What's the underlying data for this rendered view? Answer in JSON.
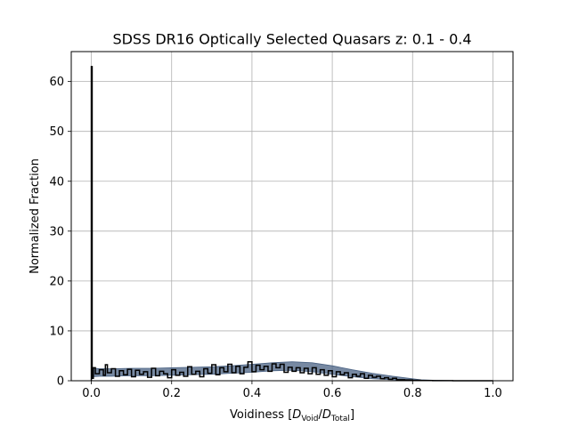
{
  "chart_data": {
    "type": "line",
    "title": "SDSS DR16 Optically Selected Quasars z: 0.1 - 0.4",
    "xlabel": {
      "prefix": "Voidiness [",
      "numer": "D",
      "numer_sub": "Void",
      "slash": "/",
      "denom": "D",
      "denom_sub": "Total",
      "suffix": "]"
    },
    "ylabel": "Normalized Fraction",
    "xlim": [
      -0.05,
      1.05
    ],
    "ylim": [
      0,
      66
    ],
    "xticks": [
      0.0,
      0.2,
      0.4,
      0.6,
      0.8,
      1.0
    ],
    "xtick_labels": [
      "0.0",
      "0.2",
      "0.4",
      "0.6",
      "0.8",
      "1.0"
    ],
    "yticks": [
      0,
      10,
      20,
      30,
      40,
      50,
      60
    ],
    "ytick_labels": [
      "0",
      "10",
      "20",
      "30",
      "40",
      "50",
      "60"
    ],
    "grid": true,
    "colors": {
      "band": "#4a6283",
      "line": "#000000",
      "grid": "#b0b0b0"
    },
    "series": [
      {
        "role": "uncertainty-band",
        "x": [
          0.0,
          0.02,
          0.05,
          0.1,
          0.15,
          0.2,
          0.25,
          0.3,
          0.35,
          0.4,
          0.45,
          0.5,
          0.55,
          0.6,
          0.65,
          0.7,
          0.75,
          0.8,
          0.82,
          0.85,
          0.9,
          1.0
        ],
        "upper": [
          2.6,
          2.4,
          2.4,
          2.5,
          2.5,
          2.6,
          2.7,
          2.8,
          3.0,
          3.3,
          3.6,
          3.8,
          3.6,
          3.0,
          2.2,
          1.5,
          0.9,
          0.4,
          0.2,
          0.1,
          0.0,
          0.0
        ],
        "lower": [
          0.8,
          0.9,
          0.9,
          1.0,
          1.0,
          1.1,
          1.2,
          1.3,
          1.5,
          1.7,
          2.0,
          2.1,
          1.8,
          1.3,
          0.8,
          0.4,
          0.2,
          0.05,
          0.0,
          0.0,
          0.0,
          0.0
        ]
      },
      {
        "role": "histogram",
        "x": [
          0.0,
          0.002,
          0.005,
          0.01,
          0.02,
          0.03,
          0.035,
          0.04,
          0.05,
          0.06,
          0.07,
          0.08,
          0.09,
          0.1,
          0.11,
          0.12,
          0.13,
          0.14,
          0.15,
          0.16,
          0.17,
          0.18,
          0.19,
          0.2,
          0.21,
          0.22,
          0.23,
          0.24,
          0.25,
          0.26,
          0.27,
          0.28,
          0.29,
          0.3,
          0.31,
          0.32,
          0.33,
          0.34,
          0.35,
          0.36,
          0.37,
          0.38,
          0.39,
          0.4,
          0.41,
          0.42,
          0.43,
          0.44,
          0.45,
          0.46,
          0.47,
          0.48,
          0.49,
          0.5,
          0.51,
          0.52,
          0.53,
          0.54,
          0.55,
          0.56,
          0.57,
          0.58,
          0.59,
          0.6,
          0.61,
          0.62,
          0.63,
          0.64,
          0.65,
          0.66,
          0.67,
          0.68,
          0.69,
          0.7,
          0.71,
          0.72,
          0.73,
          0.74,
          0.75,
          0.76,
          0.78,
          0.8,
          0.82,
          0.85,
          0.9,
          0.95,
          1.0
        ],
        "y": [
          63,
          0.5,
          2.6,
          1.4,
          2.2,
          1.1,
          3.2,
          1.6,
          2.4,
          0.9,
          2.0,
          1.2,
          2.3,
          0.8,
          2.1,
          1.3,
          1.8,
          0.7,
          2.5,
          1.0,
          1.9,
          1.4,
          0.6,
          2.2,
          1.1,
          1.7,
          0.9,
          2.8,
          1.3,
          1.9,
          0.8,
          2.4,
          1.5,
          3.2,
          1.2,
          2.6,
          1.8,
          3.3,
          1.6,
          2.9,
          1.4,
          2.7,
          3.8,
          1.8,
          3.1,
          2.2,
          2.9,
          1.9,
          3.4,
          2.6,
          3.3,
          1.7,
          2.7,
          1.9,
          2.6,
          1.6,
          2.5,
          1.4,
          2.6,
          1.3,
          2.2,
          1.1,
          2.0,
          0.8,
          1.8,
          1.2,
          1.6,
          0.6,
          1.3,
          0.9,
          1.4,
          0.5,
          1.1,
          0.7,
          0.9,
          0.4,
          0.6,
          0.3,
          0.5,
          0.2,
          0.15,
          0.1,
          0.05,
          0.02,
          0.0,
          0.0,
          0.0
        ]
      }
    ]
  }
}
